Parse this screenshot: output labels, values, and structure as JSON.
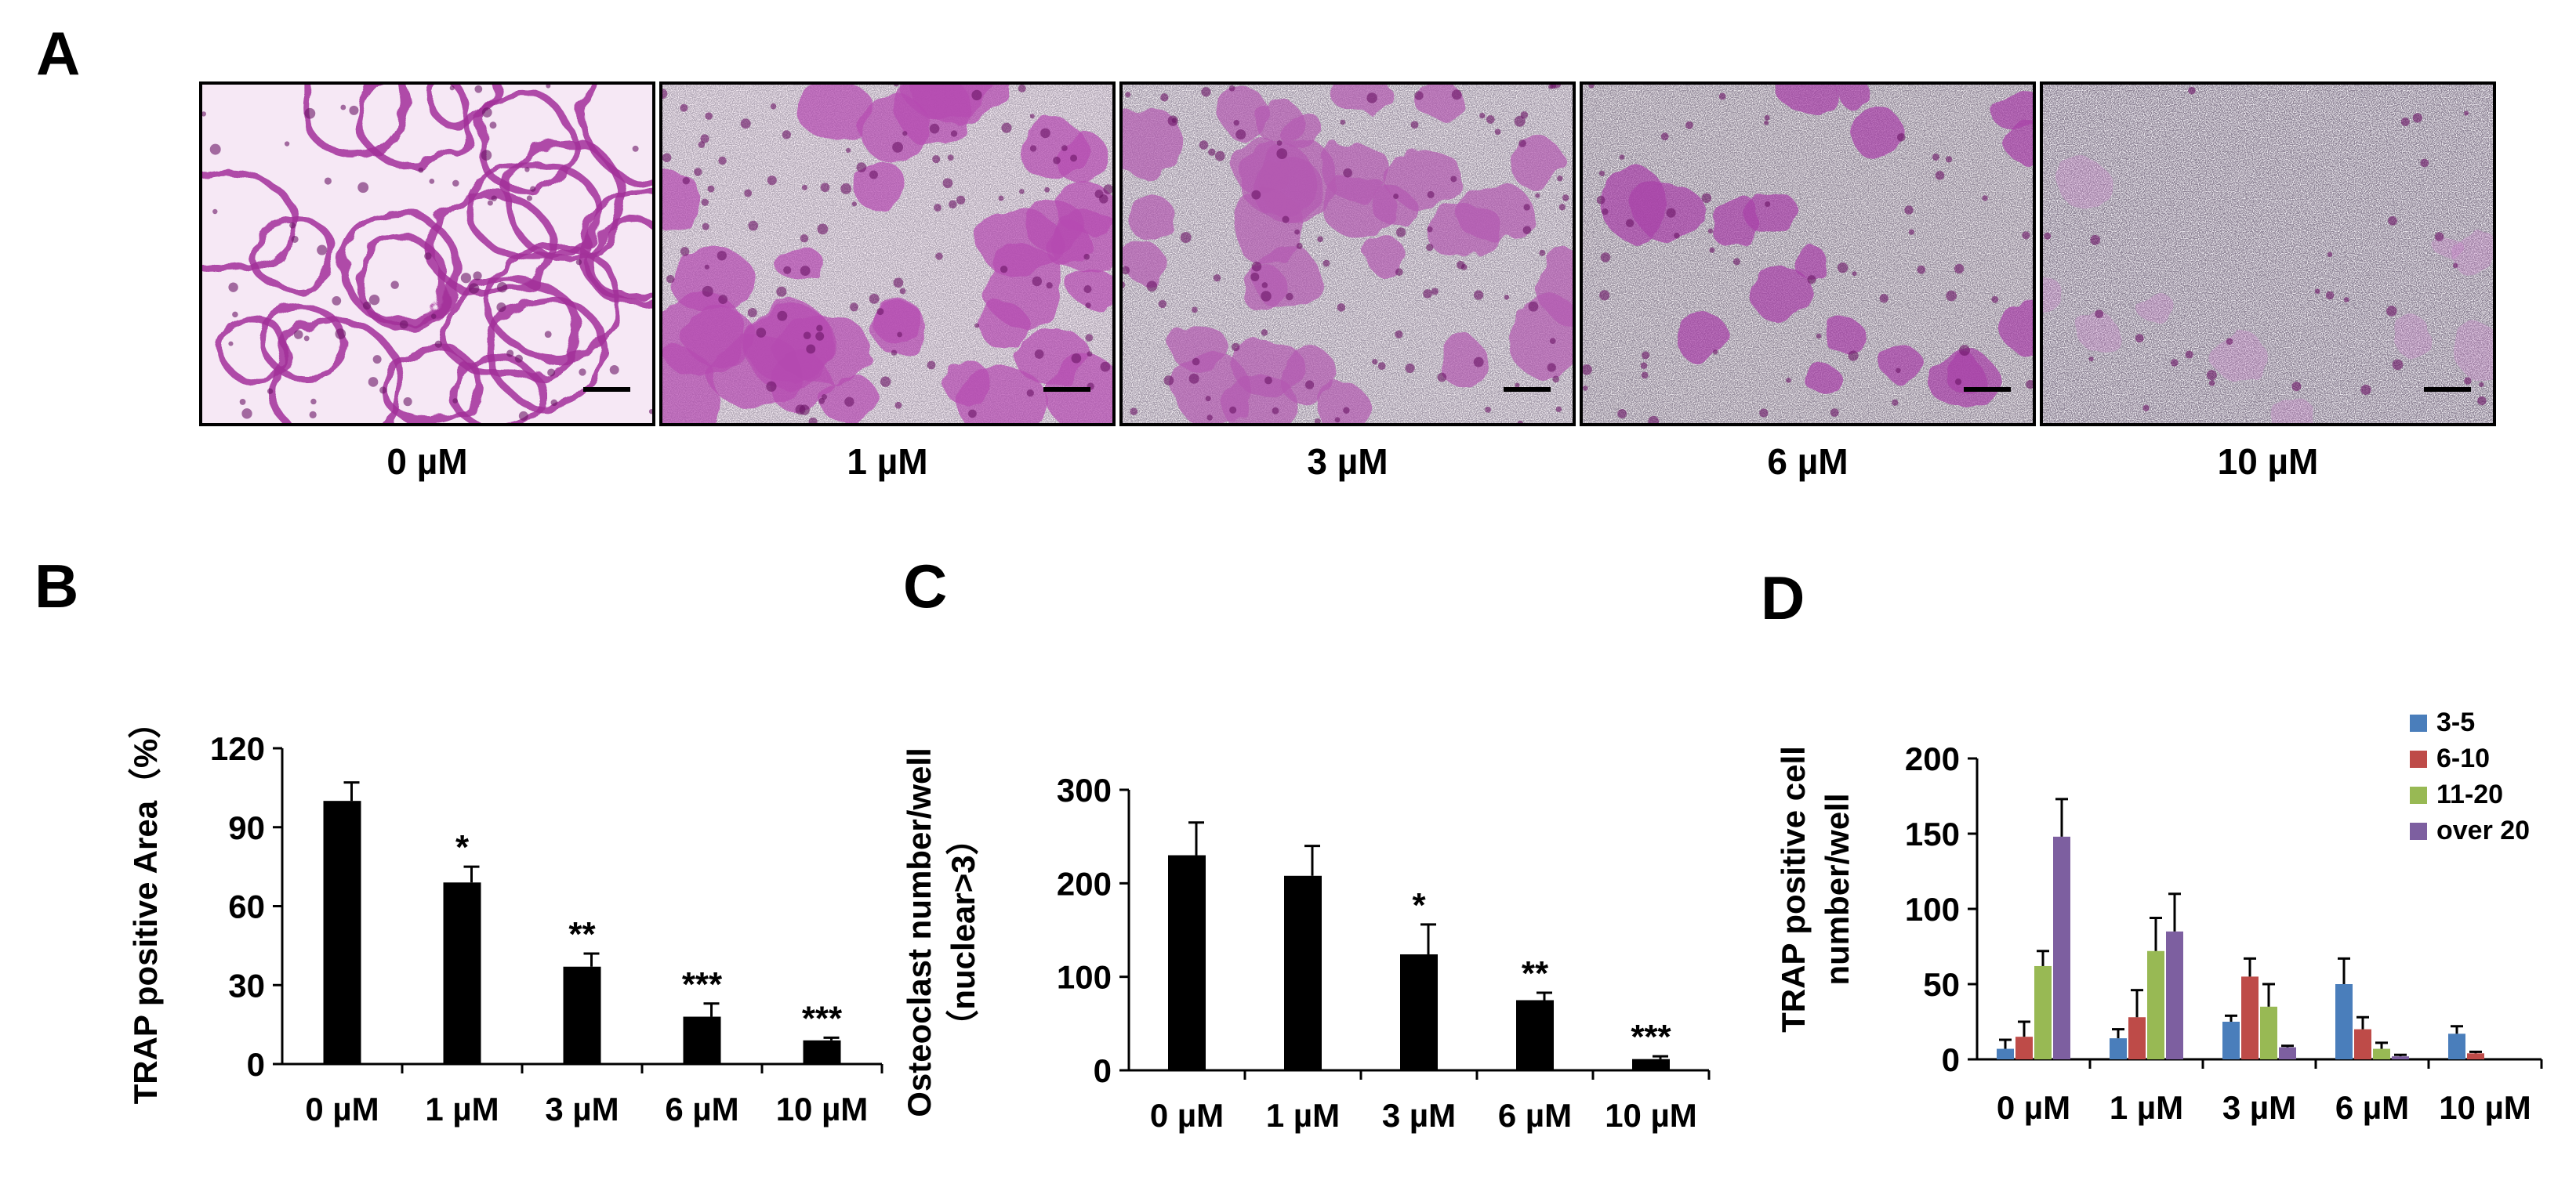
{
  "panels": {
    "A": "A",
    "B": "B",
    "C": "C",
    "D": "D"
  },
  "micrographs": [
    {
      "label": "0 µM",
      "palette": [
        "#f6e8f5",
        "#a2309a",
        "#c87ac4"
      ]
    },
    {
      "label": "1 µM",
      "palette": [
        "#efe5ee",
        "#b54ab0",
        "#2a2030"
      ]
    },
    {
      "label": "3 µM",
      "palette": [
        "#ece6ec",
        "#b35ab0",
        "#2a2030"
      ]
    },
    {
      "label": "6 µM",
      "palette": [
        "#e8e3e8",
        "#a840a8",
        "#302a30"
      ]
    },
    {
      "label": "10 µM",
      "palette": [
        "#ece8ee",
        "#c880c8",
        "#3a3440"
      ]
    }
  ],
  "chart_data": [
    {
      "type": "bar",
      "panel": "B",
      "categories": [
        "0 µM",
        "1 µM",
        "3 µM",
        "6 µM",
        "10 µM"
      ],
      "values": [
        100,
        69,
        37,
        18,
        9
      ],
      "errors": [
        7,
        6,
        5,
        5,
        1
      ],
      "significance": [
        "",
        "*",
        "**",
        "***",
        "***"
      ],
      "ylabel": "TRAP positive Area（%）",
      "ylim": [
        0,
        120
      ],
      "yticks": [
        "0",
        "30",
        "60",
        "90",
        "120"
      ],
      "bar_color": "#000000"
    },
    {
      "type": "bar",
      "panel": "C",
      "categories": [
        "0 µM",
        "1 µM",
        "3 µM",
        "6 µM",
        "10 µM"
      ],
      "values": [
        230,
        208,
        124,
        75,
        12
      ],
      "errors": [
        35,
        32,
        32,
        8,
        3
      ],
      "significance": [
        "",
        "",
        "*",
        "**",
        "***"
      ],
      "ylabel": [
        "Osteoclast  number/well",
        "（nuclear>3）"
      ],
      "ylim": [
        0,
        300
      ],
      "yticks": [
        "0",
        "100",
        "200",
        "300"
      ],
      "bar_color": "#000000"
    },
    {
      "type": "bar",
      "panel": "D",
      "categories": [
        "0 µM",
        "1 µM",
        "3 µM",
        "6 µM",
        "10 µM"
      ],
      "series": [
        {
          "name": "3-5",
          "color": "#4a7ebb",
          "values": [
            7,
            14,
            25,
            50,
            17
          ],
          "errors": [
            6,
            6,
            4,
            17,
            5
          ]
        },
        {
          "name": "6-10",
          "color": "#be4b48",
          "values": [
            15,
            28,
            55,
            20,
            4
          ],
          "errors": [
            10,
            18,
            12,
            8,
            1
          ]
        },
        {
          "name": "11-20",
          "color": "#98b954",
          "values": [
            62,
            72,
            35,
            7,
            0
          ],
          "errors": [
            10,
            22,
            15,
            4,
            0
          ]
        },
        {
          "name": "over 20",
          "color": "#7d5fa0",
          "values": [
            148,
            85,
            8,
            2,
            0
          ],
          "errors": [
            25,
            25,
            1,
            1,
            0
          ]
        }
      ],
      "ylabel": [
        "TRAP positive cell",
        "number/well"
      ],
      "ylim": [
        0,
        200
      ],
      "yticks": [
        "0",
        "50",
        "100",
        "150",
        "200"
      ],
      "legend_position": "top-right"
    }
  ]
}
